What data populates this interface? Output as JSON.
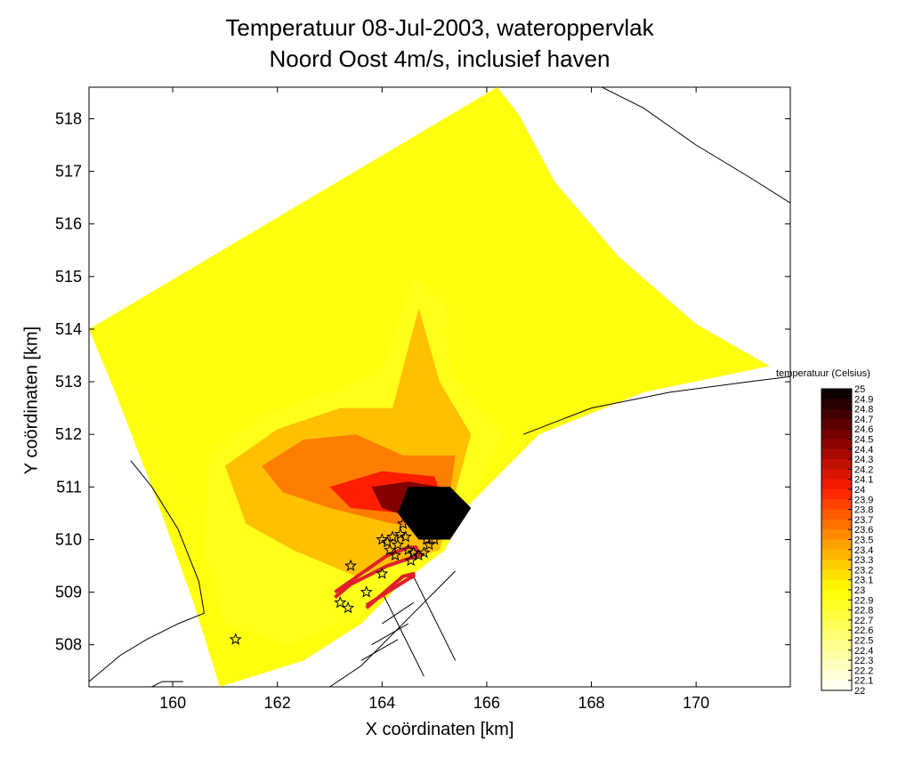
{
  "chart_data": {
    "type": "heatmap",
    "title": "Temperatuur 08-Jul-2003, wateroppervlak",
    "subtitle": "Noord Oost 4m/s, inclusief haven",
    "xlabel": "X coördinaten [km]",
    "ylabel": "Y coördinaten [km]",
    "xlim": [
      158.4,
      171.8
    ],
    "ylim": [
      507.2,
      518.6
    ],
    "xticks": [
      160,
      162,
      164,
      166,
      168,
      170
    ],
    "yticks": [
      508,
      509,
      510,
      511,
      512,
      513,
      514,
      515,
      516,
      517,
      518
    ],
    "colorbar": {
      "label": "temperatuur (Celsius)",
      "min": 22,
      "max": 25,
      "ticks": [
        "25",
        "24.9",
        "24.8",
        "24.7",
        "24.6",
        "24.5",
        "24.4",
        "24.3",
        "24.2",
        "24.1",
        "24",
        "23.9",
        "23.8",
        "23.7",
        "23.6",
        "23.5",
        "23.4",
        "23.3",
        "23.2",
        "23.1",
        "23",
        "22.9",
        "22.8",
        "22.7",
        "22.6",
        "22.5",
        "22.4",
        "22.3",
        "22.2",
        "22.1",
        "22"
      ]
    },
    "domain_polygon": [
      [
        158.4,
        514.0
      ],
      [
        166.2,
        518.6
      ],
      [
        166.6,
        518.1
      ],
      [
        167.3,
        516.8
      ],
      [
        168.5,
        515.4
      ],
      [
        170.0,
        514.1
      ],
      [
        171.4,
        513.3
      ],
      [
        169.0,
        512.8
      ],
      [
        167.0,
        512.0
      ],
      [
        165.0,
        510.0
      ],
      [
        164.2,
        509.0
      ],
      [
        163.6,
        508.4
      ],
      [
        162.5,
        507.7
      ],
      [
        160.9,
        507.2
      ],
      [
        160.4,
        508.8
      ],
      [
        159.6,
        511.0
      ],
      [
        158.9,
        512.8
      ]
    ],
    "contour_levels": [
      {
        "temp": 22.9,
        "polygon": [
          [
            160.7,
            511.6
          ],
          [
            161.6,
            512.3
          ],
          [
            163.0,
            512.8
          ],
          [
            164.0,
            513.2
          ],
          [
            164.6,
            515.0
          ],
          [
            165.2,
            514.5
          ],
          [
            165.3,
            513.1
          ],
          [
            166.3,
            512.0
          ],
          [
            165.2,
            509.8
          ],
          [
            163.5,
            508.5
          ],
          [
            162.2,
            508.0
          ],
          [
            161.0,
            508.4
          ],
          [
            160.6,
            509.8
          ]
        ]
      },
      {
        "temp": 23.3,
        "polygon": [
          [
            161.0,
            511.4
          ],
          [
            162.0,
            512.1
          ],
          [
            163.2,
            512.5
          ],
          [
            164.2,
            512.5
          ],
          [
            164.7,
            514.4
          ],
          [
            165.1,
            513.0
          ],
          [
            165.7,
            512.0
          ],
          [
            165.1,
            509.8
          ],
          [
            163.5,
            509.3
          ],
          [
            162.3,
            509.8
          ],
          [
            161.4,
            510.3
          ]
        ]
      },
      {
        "temp": 23.6,
        "polygon": [
          [
            161.7,
            511.4
          ],
          [
            162.5,
            511.9
          ],
          [
            163.5,
            512.0
          ],
          [
            164.4,
            511.6
          ],
          [
            165.4,
            511.6
          ],
          [
            165.2,
            510.2
          ],
          [
            164.2,
            510.3
          ],
          [
            163.0,
            510.6
          ],
          [
            162.1,
            510.9
          ]
        ]
      },
      {
        "temp": 24.0,
        "polygon": [
          [
            163.0,
            511.0
          ],
          [
            164.0,
            511.3
          ],
          [
            165.0,
            511.2
          ],
          [
            165.3,
            510.4
          ],
          [
            164.4,
            510.5
          ],
          [
            163.4,
            510.6
          ]
        ]
      },
      {
        "temp": 24.5,
        "polygon": [
          [
            163.8,
            511.0
          ],
          [
            164.5,
            511.1
          ],
          [
            165.1,
            511.0
          ],
          [
            165.2,
            510.5
          ],
          [
            164.6,
            510.4
          ],
          [
            164.0,
            510.6
          ]
        ]
      },
      {
        "temp": 25.0,
        "polygon": [
          [
            164.3,
            510.5
          ],
          [
            164.5,
            511.0
          ],
          [
            165.3,
            511.0
          ],
          [
            165.7,
            510.6
          ],
          [
            165.3,
            510.0
          ],
          [
            164.7,
            510.0
          ]
        ]
      }
    ],
    "outfall_line": [
      [
        163.1,
        509.0
      ],
      [
        164.1,
        509.7
      ],
      [
        164.5,
        509.85
      ],
      [
        164.65,
        509.85
      ],
      [
        164.7,
        509.7
      ],
      [
        164.1,
        509.5
      ],
      [
        163.4,
        509.15
      ],
      [
        163.1,
        508.9
      ]
    ],
    "outfall_line_2": [
      [
        163.7,
        508.7
      ],
      [
        164.4,
        509.3
      ],
      [
        164.6,
        509.35
      ],
      [
        164.6,
        509.3
      ],
      [
        164.5,
        509.25
      ],
      [
        163.7,
        508.75
      ]
    ],
    "markers": {
      "type": "star",
      "points": [
        [
          161.2,
          508.1
        ],
        [
          163.2,
          508.8
        ],
        [
          163.35,
          508.7
        ],
        [
          163.4,
          509.5
        ],
        [
          163.7,
          509.0
        ],
        [
          164.0,
          509.35
        ],
        [
          164.0,
          510.0
        ],
        [
          164.1,
          509.95
        ],
        [
          164.15,
          509.8
        ],
        [
          164.2,
          510.05
        ],
        [
          164.25,
          509.7
        ],
        [
          164.3,
          509.9
        ],
        [
          164.35,
          510.1
        ],
        [
          164.4,
          510.3
        ],
        [
          164.45,
          510.05
        ],
        [
          164.5,
          509.8
        ],
        [
          164.55,
          509.6
        ],
        [
          164.6,
          509.75
        ],
        [
          164.7,
          509.7
        ],
        [
          164.8,
          509.75
        ],
        [
          164.85,
          510.0
        ],
        [
          164.9,
          509.9
        ],
        [
          165.0,
          510.0
        ]
      ]
    },
    "coastlines": [
      [
        [
          159.2,
          511.5
        ],
        [
          159.6,
          511.0
        ],
        [
          160.1,
          510.2
        ],
        [
          160.5,
          509.2
        ],
        [
          160.6,
          508.6
        ],
        [
          160.1,
          508.4
        ],
        [
          159.5,
          508.1
        ],
        [
          159.0,
          507.8
        ],
        [
          158.4,
          507.3
        ]
      ],
      [
        [
          165.4,
          509.4
        ],
        [
          164.6,
          508.6
        ],
        [
          163.6,
          507.6
        ],
        [
          163.0,
          507.2
        ]
      ],
      [
        [
          159.6,
          507.2
        ],
        [
          159.8,
          507.3
        ],
        [
          160.2,
          507.3
        ]
      ],
      [
        [
          166.7,
          512.0
        ],
        [
          168.0,
          512.5
        ],
        [
          169.5,
          512.8
        ],
        [
          171.0,
          513.0
        ],
        [
          171.8,
          513.1
        ]
      ],
      [
        [
          168.2,
          518.6
        ],
        [
          169.0,
          518.2
        ],
        [
          170.0,
          517.5
        ],
        [
          171.0,
          516.9
        ],
        [
          171.8,
          516.4
        ]
      ]
    ],
    "harbor_grid": [
      [
        [
          164.0,
          509.0
        ],
        [
          164.2,
          508.6
        ],
        [
          164.4,
          508.2
        ],
        [
          164.6,
          507.8
        ],
        [
          164.8,
          507.4
        ]
      ],
      [
        [
          164.6,
          509.3
        ],
        [
          164.8,
          508.9
        ],
        [
          165.0,
          508.5
        ],
        [
          165.2,
          508.1
        ],
        [
          165.4,
          507.7
        ]
      ],
      [
        [
          164.0,
          508.4
        ],
        [
          164.6,
          508.8
        ]
      ],
      [
        [
          163.8,
          508.0
        ],
        [
          164.5,
          508.4
        ]
      ],
      [
        [
          163.6,
          507.7
        ],
        [
          164.3,
          508.1
        ]
      ]
    ]
  }
}
